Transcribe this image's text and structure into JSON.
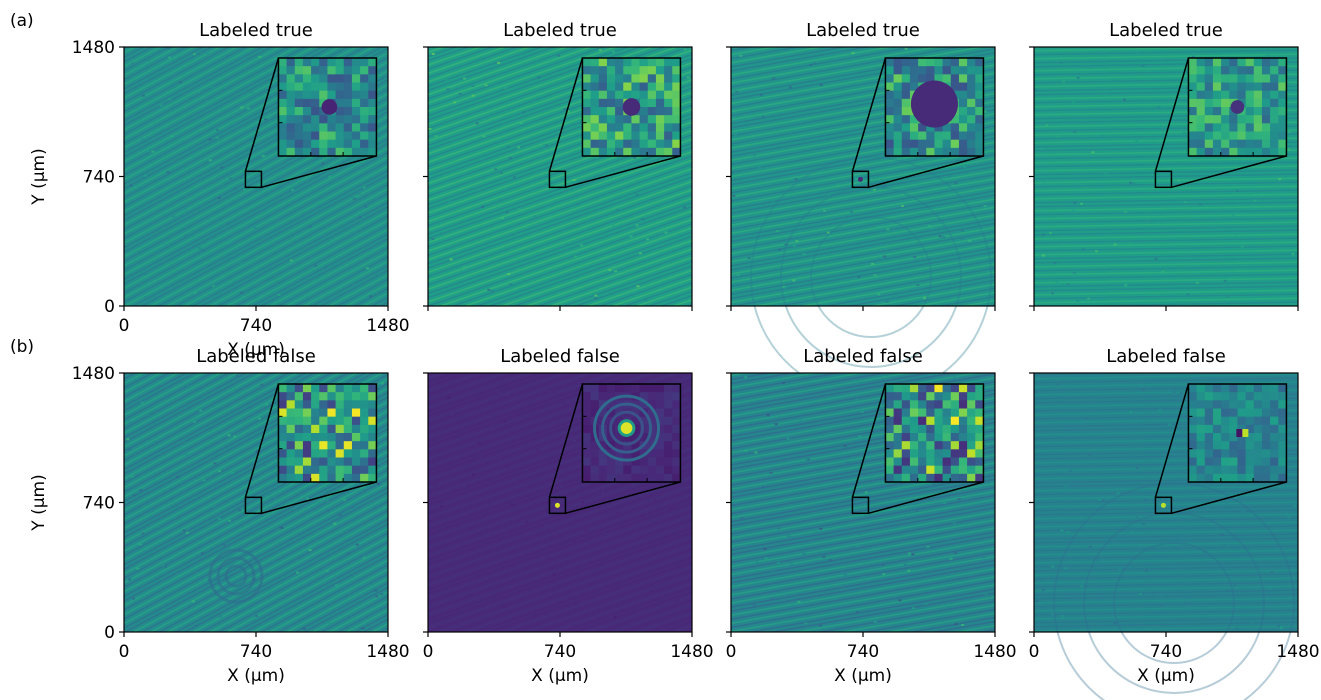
{
  "chart_data": [
    {
      "type": "heatmap",
      "row_label": "(a)",
      "title": "Labeled true",
      "xlabel": "X (μm)",
      "ylabel": "Y (μm)",
      "xlim": [
        0,
        1480
      ],
      "ylim": [
        0,
        1480
      ],
      "xticks": [
        "0",
        "740",
        "1480"
      ],
      "yticks": [
        "0",
        "740",
        "1480"
      ],
      "colormap": "viridis",
      "field_level": 0.5,
      "noise_level": 0.18,
      "inset": {
        "xlim": [
          700,
          800
        ],
        "ylim": [
          720,
          820
        ],
        "feature": "dark spot",
        "feature_level": 0.1,
        "feature_radius": 0.08,
        "feature_x": 0.52,
        "feature_y": 0.5
      }
    },
    {
      "type": "heatmap",
      "title": "Labeled true",
      "xlabel": "",
      "ylabel": "",
      "xlim": [
        0,
        1480
      ],
      "ylim": [
        0,
        1480
      ],
      "colormap": "viridis",
      "field_level": 0.56,
      "noise_level": 0.2,
      "inset": {
        "xlim": [
          700,
          800
        ],
        "ylim": [
          720,
          820
        ],
        "feature": "dark spot",
        "feature_level": 0.12,
        "feature_radius": 0.09,
        "feature_x": 0.5,
        "feature_y": 0.5
      }
    },
    {
      "type": "heatmap",
      "title": "Labeled true",
      "xlabel": "",
      "ylabel": "",
      "xlim": [
        0,
        1480
      ],
      "ylim": [
        0,
        1480
      ],
      "colormap": "viridis",
      "field_level": 0.52,
      "noise_level": 0.2,
      "inset": {
        "xlim": [
          700,
          800
        ],
        "ylim": [
          720,
          820
        ],
        "feature": "large dark disk",
        "feature_level": 0.12,
        "feature_radius": 0.24,
        "feature_x": 0.5,
        "feature_y": 0.47
      }
    },
    {
      "type": "heatmap",
      "title": "Labeled true",
      "xlabel": "",
      "ylabel": "",
      "xlim": [
        0,
        1480
      ],
      "ylim": [
        0,
        1480
      ],
      "colormap": "viridis",
      "field_level": 0.55,
      "noise_level": 0.16,
      "inset": {
        "xlim": [
          700,
          800
        ],
        "ylim": [
          720,
          820
        ],
        "feature": "dark spot",
        "feature_level": 0.14,
        "feature_radius": 0.07,
        "feature_x": 0.5,
        "feature_y": 0.5
      }
    },
    {
      "type": "heatmap",
      "row_label": "(b)",
      "title": "Labeled false",
      "xlabel": "X (μm)",
      "ylabel": "Y (μm)",
      "xlim": [
        0,
        1480
      ],
      "ylim": [
        0,
        1480
      ],
      "xticks": [
        "0",
        "740",
        "1480"
      ],
      "yticks": [
        "0",
        "740",
        "1480"
      ],
      "colormap": "viridis",
      "field_level": 0.48,
      "noise_level": 0.2,
      "inset": {
        "xlim": [
          700,
          800
        ],
        "ylim": [
          720,
          820
        ],
        "feature": "striped noise",
        "feature_level": 0.3,
        "feature_radius": 0.0,
        "feature_x": 0.5,
        "feature_y": 0.5
      }
    },
    {
      "type": "heatmap",
      "title": "Labeled false",
      "xlabel": "X (μm)",
      "ylabel": "",
      "xlim": [
        0,
        1480
      ],
      "ylim": [
        0,
        1480
      ],
      "xticks": [
        "0",
        "740",
        "1480"
      ],
      "colormap": "viridis",
      "field_level": 0.12,
      "noise_level": 0.03,
      "inset": {
        "xlim": [
          700,
          800
        ],
        "ylim": [
          720,
          820
        ],
        "feature": "bright ring spot",
        "feature_level": 0.95,
        "feature_radius": 0.07,
        "feature_x": 0.45,
        "feature_y": 0.45
      }
    },
    {
      "type": "heatmap",
      "title": "Labeled false",
      "xlabel": "X (μm)",
      "ylabel": "",
      "xlim": [
        0,
        1480
      ],
      "ylim": [
        0,
        1480
      ],
      "xticks": [
        "0",
        "740",
        "1480"
      ],
      "colormap": "viridis",
      "field_level": 0.46,
      "noise_level": 0.22,
      "inset": {
        "xlim": [
          700,
          800
        ],
        "ylim": [
          720,
          820
        ],
        "feature": "striped noise",
        "feature_level": 0.3,
        "feature_radius": 0.0,
        "feature_x": 0.5,
        "feature_y": 0.5
      }
    },
    {
      "type": "heatmap",
      "title": "Labeled false",
      "xlabel": "X (μm)",
      "ylabel": "",
      "xlim": [
        0,
        1480
      ],
      "ylim": [
        0,
        1480
      ],
      "xticks": [
        "0",
        "740",
        "1480"
      ],
      "colormap": "viridis",
      "field_level": 0.45,
      "noise_level": 0.1,
      "inset": {
        "xlim": [
          700,
          800
        ],
        "ylim": [
          720,
          820
        ],
        "feature": "dark-bright dipole",
        "feature_level": 0.9,
        "feature_radius": 0.06,
        "feature_x": 0.55,
        "feature_y": 0.5
      }
    }
  ]
}
